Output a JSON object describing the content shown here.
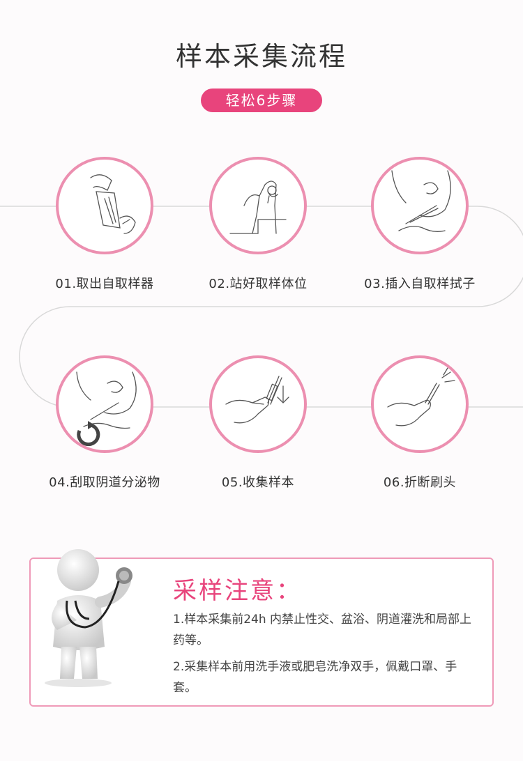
{
  "page": {
    "title": "样本采集流程",
    "subtitle_badge": "轻松6步骤"
  },
  "colors": {
    "accent": "#e8447c",
    "circle_border": "#ec8fb0",
    "flow_line": "#d9d9d9"
  },
  "steps": [
    {
      "label": "01.取出自取样器",
      "icon": "swab-package-icon"
    },
    {
      "label": "02.站好取样体位",
      "icon": "standing-posture-icon"
    },
    {
      "label": "03.插入自取样拭子",
      "icon": "insert-swab-icon"
    },
    {
      "label": "04.刮取阴道分泌物",
      "icon": "rotate-swab-icon"
    },
    {
      "label": "05.收集样本",
      "icon": "collect-sample-icon"
    },
    {
      "label": "06.折断刷头",
      "icon": "break-brush-head-icon"
    }
  ],
  "notice": {
    "title": "采样注意：",
    "items": [
      "1.样本采集前24h  内禁止性交、盆浴、阴道灌洗和局部上药等。",
      "2.采集样本前用洗手液或肥皂洗净双手，佩戴口罩、手套。"
    ]
  }
}
